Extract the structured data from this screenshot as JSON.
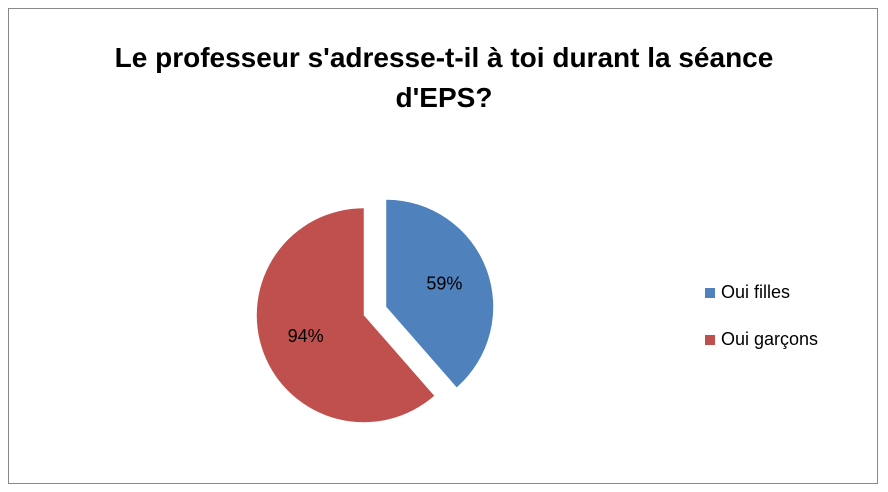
{
  "chart_data": {
    "type": "pie",
    "title": "Le professeur s'adresse-t-il à toi durant la séance d'EPS?",
    "categories": [
      "Oui filles",
      "Oui garçons"
    ],
    "values": [
      59,
      94
    ],
    "value_labels": [
      "59%",
      "94%"
    ],
    "colors": [
      "#4f81bd",
      "#c0504d"
    ],
    "legend": "right"
  }
}
